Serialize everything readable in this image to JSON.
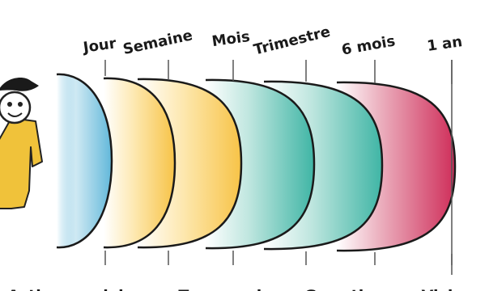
{
  "horizons": [
    {
      "label": "Jour",
      "color": "#62b8da"
    },
    {
      "label": "Semaine",
      "color": "#f7c347"
    },
    {
      "label": "Mois",
      "color": "#f7c347"
    },
    {
      "label": "Trimestre",
      "color": "#3fb5a5"
    },
    {
      "label": "6 mois",
      "color": "#3fb5a5"
    },
    {
      "label": "1 an",
      "color": "#cf2e5a"
    }
  ],
  "bottom_labels": [
    "Acti",
    "ivi",
    "Ta",
    "i",
    "Ge",
    "tio",
    "Visi"
  ],
  "figure": {
    "icon": "person-with-hat-icon",
    "body_color": "#f0c23a"
  }
}
